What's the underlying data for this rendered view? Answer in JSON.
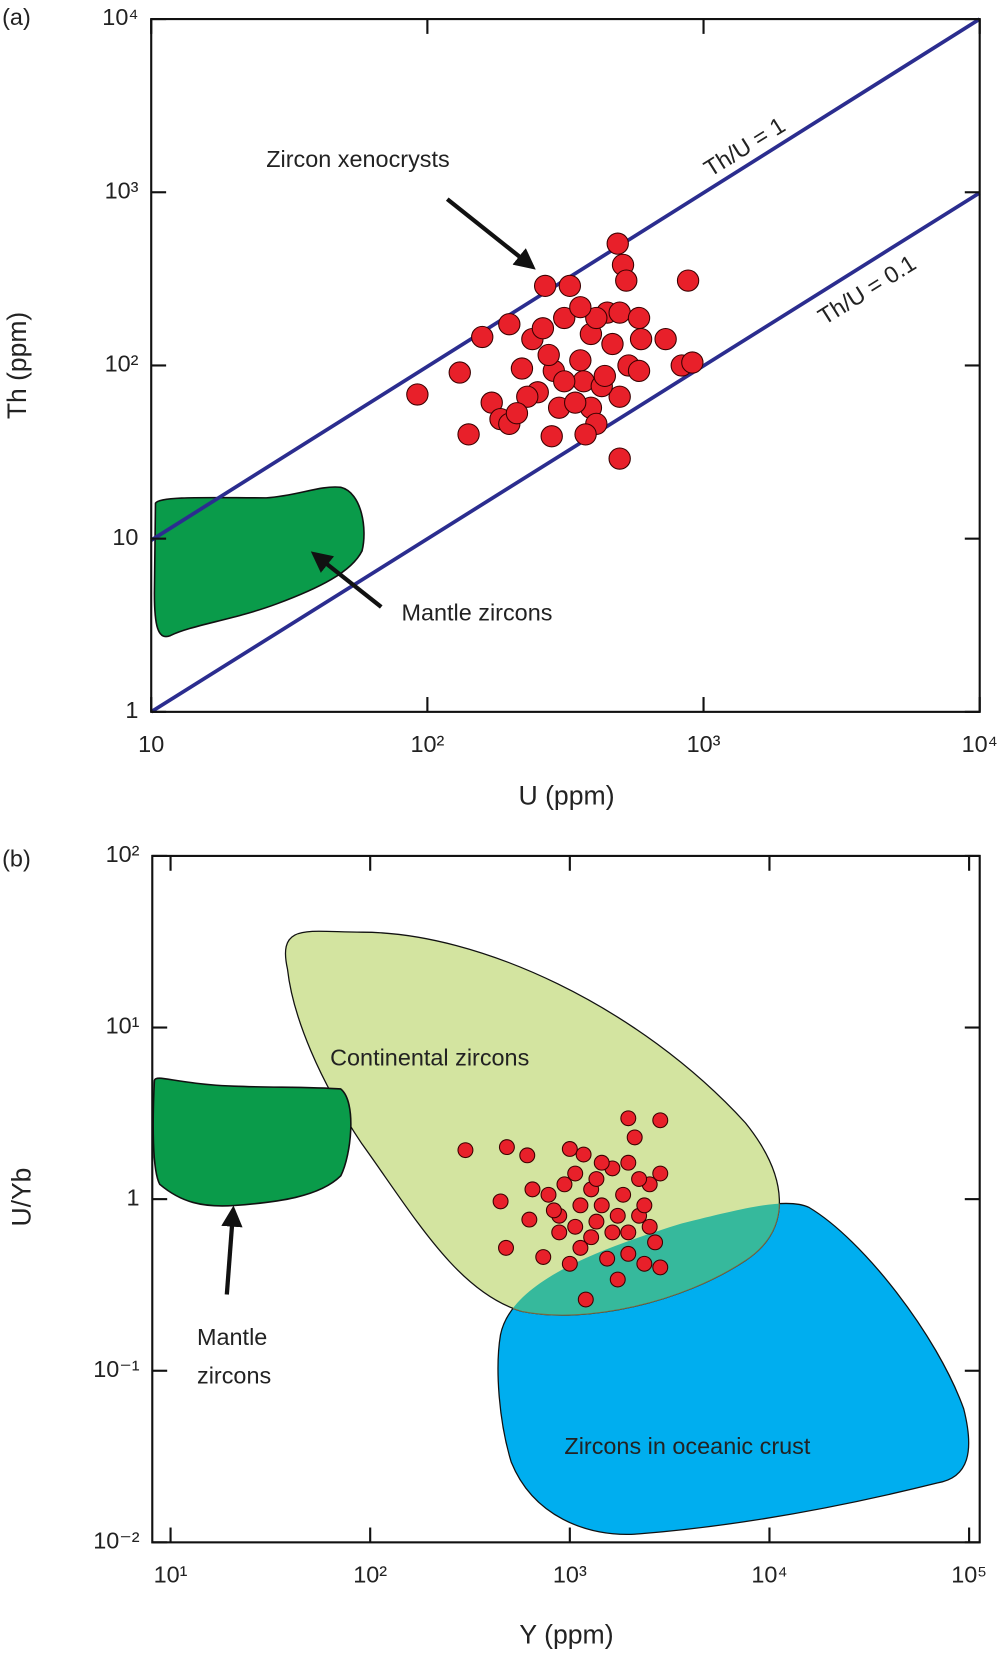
{
  "chart_data": [
    {
      "type": "scatter",
      "panel_label": "(a)",
      "x_label": "U (ppm)",
      "y_label": "Th (ppm)",
      "log_x": true,
      "log_y": true,
      "xlim": [
        10,
        10000
      ],
      "ylim": [
        1,
        10000
      ],
      "xticks": [
        10,
        {
          "value": 100,
          "label": "10²"
        },
        {
          "value": 1000,
          "label": "10³"
        },
        {
          "value": 10000,
          "label": "10⁴"
        }
      ],
      "yticks": [
        1,
        10,
        {
          "value": 100,
          "label": "10²"
        },
        {
          "value": 1000,
          "label": "10³"
        },
        {
          "value": 10000,
          "label": "10⁴"
        }
      ],
      "annotations": [
        "Zircon xenocrysts",
        "Mantle zircons",
        "Th/U = 1",
        "Th/U = 0.1"
      ],
      "series": [
        {
          "color": "#e8202a",
          "x": [
            92,
            131,
            141,
            158,
            198,
            171,
            184,
            198,
            220,
            240,
            251,
            267,
            313,
            287,
            282,
            300,
            328,
            358,
            391,
            368,
            391,
            409,
            448,
            468,
            489,
            511,
            525,
            497,
            535,
            584,
            594,
            497,
            428,
            343,
            497,
            729,
            879,
            834,
            911,
            584,
            409,
            262,
            230,
            211,
            374,
            439,
            358,
            313,
            275
          ],
          "values": [
            68,
            91,
            40,
            146,
            173,
            61,
            49,
            46,
            96,
            142,
            70,
            288,
            188,
            93,
            39,
            57,
            288,
            107,
            152,
            81,
            57,
            46,
            202,
            133,
            505,
            381,
            309,
            202,
            100,
            93,
            142,
            66,
            76,
            61,
            29,
            142,
            309,
            100,
            104,
            188,
            188,
            164,
            66,
            53,
            40,
            87,
            217,
            81,
            115
          ]
        }
      ]
    },
    {
      "type": "scatter",
      "panel_label": "(b)",
      "x_label": "Y (ppm)",
      "y_label": "U/Yb",
      "log_x": true,
      "log_y": true,
      "xlim": [
        8.1,
        113000
      ],
      "ylim": [
        0.01,
        100
      ],
      "xticks": [
        {
          "value": 10,
          "label": "10¹"
        },
        {
          "value": 100,
          "label": "10²"
        },
        {
          "value": 1000,
          "label": "10³"
        },
        {
          "value": 10000,
          "label": "10⁴"
        },
        {
          "value": 100000,
          "label": "10⁵"
        }
      ],
      "yticks": [
        {
          "value": 0.01,
          "label": "10⁻²"
        },
        {
          "value": 0.1,
          "label": "10⁻¹"
        },
        1,
        {
          "value": 10,
          "label": "10¹"
        },
        {
          "value": 100,
          "label": "10²"
        }
      ],
      "annotations": [
        "Continental zircons",
        "Zircons in oceanic crust",
        [
          "Mantle",
          "zircons"
        ]
      ],
      "series": [
        {
          "color": "#e8202a",
          "x": [
            300,
            484,
            612,
            450,
            627,
            479,
            736,
            1000,
            1172,
            1963,
            2838,
            2113,
            1202,
            782,
            885,
            1064,
            1279,
            1445,
            1634,
            1849,
            2223,
            2512,
            2838,
            2673,
            2362,
            2838,
            1963,
            1538,
            1279,
            1064,
            885,
            832,
            1130,
            1359,
            1634,
            1963,
            2362,
            2223,
            1359,
            940,
            1130,
            1738,
            1963,
            1445,
            2512,
            1738,
            1000,
            650
          ],
          "values": [
            1.93,
            2.01,
            1.8,
            0.97,
            0.76,
            0.52,
            0.46,
            1.96,
            1.82,
            2.96,
            2.88,
            2.29,
            0.26,
            1.06,
            0.8,
            1.41,
            1.14,
            0.92,
            1.51,
            1.06,
            0.8,
            1.22,
            1.41,
            0.56,
            0.42,
            0.4,
            0.48,
            0.45,
            0.6,
            0.69,
            0.64,
            0.86,
            0.92,
            0.74,
            0.64,
            0.64,
            0.92,
            1.31,
            1.31,
            1.22,
            0.52,
            0.8,
            1.63,
            1.63,
            0.69,
            0.34,
            0.42,
            1.14
          ]
        }
      ]
    }
  ]
}
